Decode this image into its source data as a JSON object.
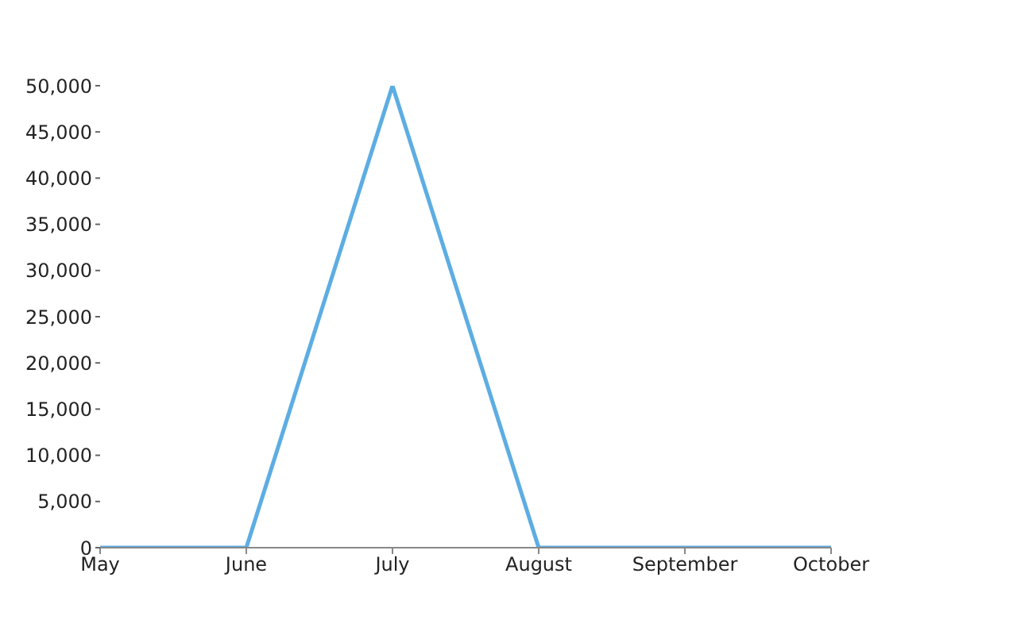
{
  "chart_data": {
    "type": "line",
    "categories": [
      "May",
      "June",
      "July",
      "August",
      "September",
      "October"
    ],
    "series": [
      {
        "color": "#5dade2",
        "values": [
          0,
          0,
          50000,
          0,
          0,
          0
        ]
      }
    ],
    "ylim": [
      0,
      50000
    ],
    "yticks": [
      {
        "value": 0,
        "label": "0"
      },
      {
        "value": 5000,
        "label": "5,000"
      },
      {
        "value": 10000,
        "label": "10,000"
      },
      {
        "value": 15000,
        "label": "15,000"
      },
      {
        "value": 20000,
        "label": "20,000"
      },
      {
        "value": 25000,
        "label": "25,000"
      },
      {
        "value": 30000,
        "label": "30,000"
      },
      {
        "value": 35000,
        "label": "35,000"
      },
      {
        "value": 40000,
        "label": "40,000"
      },
      {
        "value": 45000,
        "label": "45,000"
      },
      {
        "value": 50000,
        "label": "50,000"
      }
    ],
    "grid": false,
    "legend": false,
    "marker": "none",
    "line_style": "solid"
  }
}
